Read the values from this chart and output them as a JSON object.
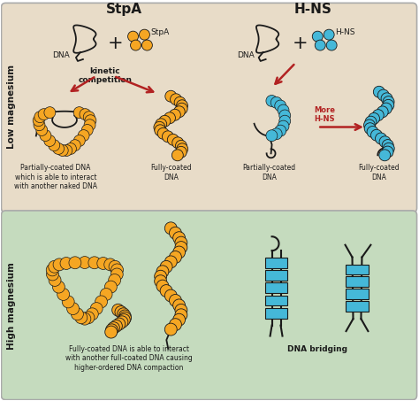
{
  "title_stpa": "StpA",
  "title_hns": "H-NS",
  "label_low_mg": "Low magnesium",
  "label_high_mg": "High magnesium",
  "label_dna": "DNA",
  "label_stpa": "StpA",
  "label_hns": "H-NS",
  "label_kinetic": "kinetic\ncompetition",
  "label_more_hns": "More\nH-NS",
  "label_partial_stpa": "Partially-coated DNA\nwhich is able to interact\nwith another naked DNA",
  "label_fully_stpa": "Fully-coated\nDNA",
  "label_partial_hns": "Partially-coated\nDNA",
  "label_fully_hns": "Fully-coated\nDNA",
  "label_high_stpa": "Fully-coated DNA is able to interact\nwith another full-coated DNA causing\nhigher-ordered DNA compaction",
  "label_dna_bridging": "DNA bridging",
  "bg_low": "#e8dcc8",
  "bg_high": "#c5dbbe",
  "orange": "#f5a623",
  "blue": "#45b8d8",
  "red_arrow": "#b22222",
  "black": "#1a1a1a",
  "border_color": "#aaaaaa"
}
